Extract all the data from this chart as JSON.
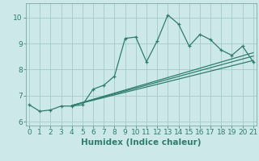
{
  "title": "",
  "xlabel": "Humidex (Indice chaleur)",
  "bg_color": "#cce8e8",
  "line_color": "#2e7d6e",
  "grid_color": "#aacece",
  "main_x": [
    0,
    1,
    2,
    3,
    4,
    5,
    6,
    7,
    8,
    9,
    10,
    11,
    12,
    13,
    14,
    15,
    16,
    17,
    18,
    19,
    20,
    21
  ],
  "main_y": [
    6.65,
    6.4,
    6.45,
    6.6,
    6.6,
    6.65,
    7.25,
    7.4,
    7.75,
    9.2,
    9.25,
    8.3,
    9.1,
    10.1,
    9.75,
    8.9,
    9.35,
    9.15,
    8.75,
    8.55,
    8.9,
    8.3
  ],
  "trend1_x": [
    4,
    21
  ],
  "trend1_y": [
    6.62,
    8.65
  ],
  "trend2_x": [
    4,
    21
  ],
  "trend2_y": [
    6.62,
    8.52
  ],
  "trend3_x": [
    4,
    21
  ],
  "trend3_y": [
    6.62,
    8.35
  ],
  "xlim": [
    -0.3,
    21.3
  ],
  "ylim": [
    5.85,
    10.55
  ],
  "xticks": [
    0,
    1,
    2,
    3,
    4,
    5,
    6,
    7,
    8,
    9,
    10,
    11,
    12,
    13,
    14,
    15,
    16,
    17,
    18,
    19,
    20,
    21
  ],
  "yticks": [
    6,
    7,
    8,
    9,
    10
  ],
  "tick_fontsize": 6.5,
  "xlabel_fontsize": 7.5
}
